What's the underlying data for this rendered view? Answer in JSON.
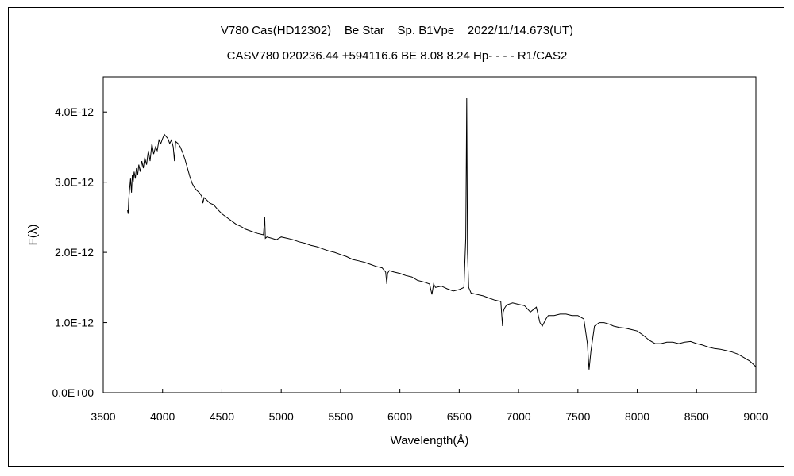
{
  "chart_data": {
    "type": "line",
    "title": "V780 Cas(HD12302)    Be Star    Sp. B1Vpe    2022/11/14.673(UT)",
    "subtitle": "CASV780 020236.44 +594116.6 BE 8.08 8.24 Hp- - - - R1/CAS2",
    "xlabel": "Wavelength(Å)",
    "ylabel": "F(λ)",
    "xlim": [
      3500,
      9000
    ],
    "ylim": [
      0,
      4.5e-12
    ],
    "x_ticks": [
      "3500",
      "4000",
      "4500",
      "5000",
      "5500",
      "6000",
      "6500",
      "7000",
      "7500",
      "8000",
      "8500",
      "9000"
    ],
    "y_ticks": [
      "0.0E+00",
      "1.0E-12",
      "2.0E-12",
      "3.0E-12",
      "4.0E-12"
    ],
    "grid": false,
    "legend": "none",
    "line_color": "#000000",
    "series": [
      {
        "x": [
          3705,
          3710,
          3715,
          3722,
          3730,
          3738,
          3745,
          3752,
          3760,
          3770,
          3780,
          3790,
          3800,
          3812,
          3825,
          3838,
          3850,
          3865,
          3880,
          3895,
          3910,
          3925,
          3940,
          3955,
          3970,
          3985,
          4000,
          4015,
          4030,
          4045,
          4060,
          4075,
          4090,
          4100,
          4110,
          4130,
          4150,
          4170,
          4190,
          4210,
          4230,
          4250,
          4270,
          4290,
          4310,
          4330,
          4340,
          4350,
          4370,
          4400,
          4430,
          4460,
          4500,
          4540,
          4580,
          4620,
          4660,
          4700,
          4750,
          4800,
          4850,
          4861,
          4866,
          4880,
          4920,
          4960,
          5000,
          5050,
          5100,
          5150,
          5200,
          5250,
          5300,
          5350,
          5400,
          5450,
          5500,
          5550,
          5600,
          5650,
          5700,
          5750,
          5800,
          5850,
          5880,
          5890,
          5896,
          5910,
          5950,
          6000,
          6050,
          6100,
          6150,
          6200,
          6250,
          6270,
          6284,
          6300,
          6350,
          6400,
          6450,
          6500,
          6540,
          6555,
          6560,
          6563,
          6566,
          6570,
          6580,
          6600,
          6650,
          6700,
          6750,
          6800,
          6850,
          6865,
          6870,
          6880,
          6900,
          6950,
          7000,
          7050,
          7100,
          7150,
          7180,
          7200,
          7230,
          7250,
          7300,
          7350,
          7400,
          7450,
          7500,
          7550,
          7580,
          7594,
          7610,
          7640,
          7680,
          7720,
          7760,
          7800,
          7850,
          7900,
          7950,
          8000,
          8050,
          8100,
          8150,
          8200,
          8250,
          8300,
          8350,
          8400,
          8450,
          8500,
          8550,
          8600,
          8650,
          8700,
          8750,
          8800,
          8850,
          8900,
          8950,
          9000
        ],
        "y": [
          2.6e-12,
          2.55e-12,
          2.75e-12,
          2.9e-12,
          3.05e-12,
          2.85e-12,
          3.1e-12,
          3e-12,
          3.15e-12,
          3.05e-12,
          3.2e-12,
          3.1e-12,
          3.25e-12,
          3.15e-12,
          3.3e-12,
          3.2e-12,
          3.35e-12,
          3.25e-12,
          3.45e-12,
          3.3e-12,
          3.55e-12,
          3.4e-12,
          3.5e-12,
          3.45e-12,
          3.6e-12,
          3.55e-12,
          3.62e-12,
          3.68e-12,
          3.65e-12,
          3.62e-12,
          3.55e-12,
          3.6e-12,
          3.5e-12,
          3.3e-12,
          3.58e-12,
          3.55e-12,
          3.5e-12,
          3.42e-12,
          3.32e-12,
          3.2e-12,
          3.08e-12,
          2.98e-12,
          2.92e-12,
          2.88e-12,
          2.85e-12,
          2.8e-12,
          2.7e-12,
          2.78e-12,
          2.75e-12,
          2.7e-12,
          2.68e-12,
          2.62e-12,
          2.55e-12,
          2.5e-12,
          2.45e-12,
          2.4e-12,
          2.37e-12,
          2.33e-12,
          2.3e-12,
          2.27e-12,
          2.25e-12,
          2.5e-12,
          2.2e-12,
          2.22e-12,
          2.2e-12,
          2.18e-12,
          2.22e-12,
          2.2e-12,
          2.18e-12,
          2.15e-12,
          2.13e-12,
          2.1e-12,
          2.08e-12,
          2.05e-12,
          2.02e-12,
          2e-12,
          1.97e-12,
          1.94e-12,
          1.9e-12,
          1.88e-12,
          1.86e-12,
          1.83e-12,
          1.8e-12,
          1.78e-12,
          1.72e-12,
          1.55e-12,
          1.7e-12,
          1.74e-12,
          1.72e-12,
          1.7e-12,
          1.67e-12,
          1.65e-12,
          1.6e-12,
          1.58e-12,
          1.55e-12,
          1.4e-12,
          1.55e-12,
          1.5e-12,
          1.52e-12,
          1.48e-12,
          1.45e-12,
          1.47e-12,
          1.5e-12,
          2.2e-12,
          3.3e-12,
          4.2e-12,
          3.3e-12,
          2e-12,
          1.5e-12,
          1.42e-12,
          1.4e-12,
          1.38e-12,
          1.35e-12,
          1.32e-12,
          1.3e-12,
          9.5e-13,
          1.15e-12,
          1.2e-12,
          1.25e-12,
          1.28e-12,
          1.26e-12,
          1.24e-12,
          1.15e-12,
          1.22e-12,
          1e-12,
          9.5e-13,
          1.05e-12,
          1.1e-12,
          1.1e-12,
          1.12e-12,
          1.12e-12,
          1.1e-12,
          1.1e-12,
          1.05e-12,
          7e-13,
          3.3e-13,
          6e-13,
          9.5e-13,
          1e-12,
          1e-12,
          9.8e-13,
          9.5e-13,
          9.3e-13,
          9.2e-13,
          9e-13,
          8.8e-13,
          8.2e-13,
          7.5e-13,
          7e-13,
          7e-13,
          7.2e-13,
          7.2e-13,
          7e-13,
          7.2e-13,
          7.3e-13,
          7e-13,
          6.8e-13,
          6.5e-13,
          6.3e-13,
          6.2e-13,
          6e-13,
          5.8e-13,
          5.5e-13,
          5e-13,
          4.5e-13,
          3.7e-13
        ]
      }
    ]
  }
}
